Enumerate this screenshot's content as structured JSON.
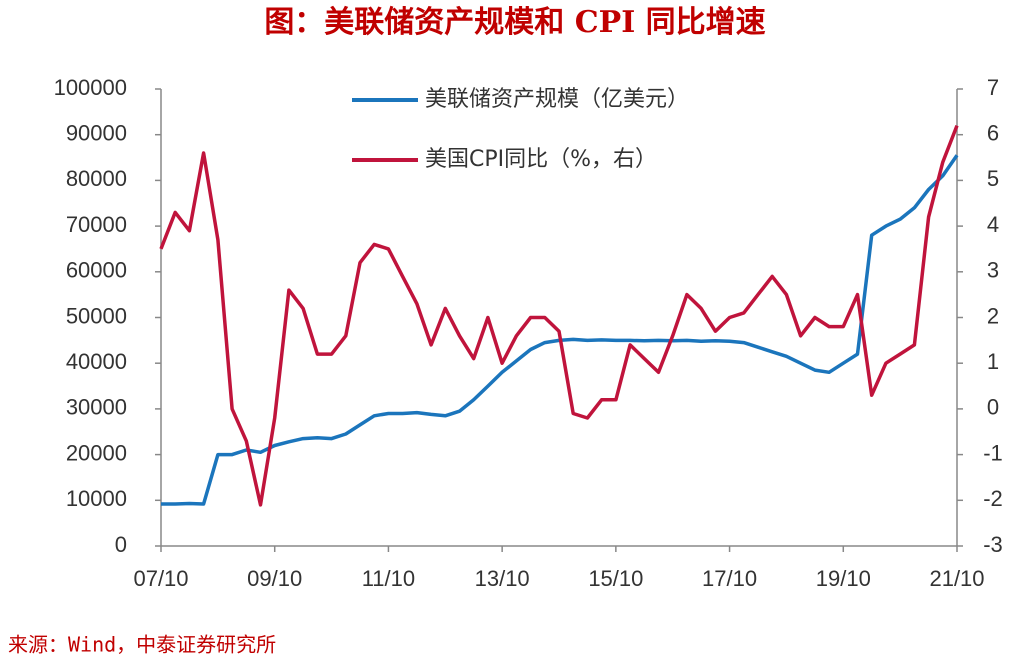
{
  "chart_data": {
    "type": "line",
    "title": "图：美联储资产规模和 CPI 同比增速",
    "source": "来源：Wind，中泰证券研究所",
    "categories": [
      "07/10",
      null,
      null,
      null,
      null,
      null,
      null,
      null,
      "09/10",
      null,
      null,
      null,
      null,
      null,
      null,
      null,
      "11/10",
      null,
      null,
      null,
      null,
      null,
      null,
      null,
      "13/10",
      null,
      null,
      null,
      null,
      null,
      null,
      null,
      "15/10",
      null,
      null,
      null,
      null,
      null,
      null,
      null,
      "17/10",
      null,
      null,
      null,
      null,
      null,
      null,
      null,
      "19/10",
      null,
      null,
      null,
      null,
      null,
      null,
      null,
      "21/10"
    ],
    "series": [
      {
        "name": "美联储资产规模（亿美元）",
        "color": "#1b75bc",
        "axis": "y",
        "values": [
          9200,
          9200,
          9300,
          9200,
          20000,
          20000,
          21000,
          20500,
          22000,
          22800,
          23500,
          23700,
          23500,
          24500,
          26500,
          28500,
          29000,
          29000,
          29200,
          28800,
          28500,
          29500,
          32000,
          35000,
          38000,
          40500,
          43000,
          44500,
          45000,
          45200,
          45000,
          45100,
          45000,
          45000,
          44900,
          45000,
          44900,
          45000,
          44800,
          44900,
          44800,
          44500,
          43500,
          42500,
          41500,
          40000,
          38500,
          38000,
          40000,
          42000,
          68000,
          70000,
          71500,
          74000,
          78000,
          81000,
          85500
        ]
      },
      {
        "name": "美国CPI同比（%，右）",
        "color": "#c0143c",
        "axis": "y2",
        "values": [
          3.5,
          4.3,
          3.9,
          5.6,
          3.7,
          0.0,
          -0.7,
          -2.1,
          -0.2,
          2.6,
          2.2,
          1.2,
          1.2,
          1.6,
          3.2,
          3.6,
          3.5,
          2.9,
          2.3,
          1.4,
          2.2,
          1.6,
          1.1,
          2.0,
          1.0,
          1.6,
          2.0,
          2.0,
          1.7,
          -0.1,
          -0.2,
          0.2,
          0.2,
          1.4,
          1.1,
          0.8,
          1.6,
          2.5,
          2.2,
          1.7,
          2.0,
          2.1,
          2.5,
          2.9,
          2.5,
          1.6,
          2.0,
          1.8,
          1.8,
          2.5,
          0.3,
          1.0,
          1.2,
          1.4,
          4.2,
          5.4,
          6.2
        ]
      }
    ],
    "ylim": [
      0,
      100000
    ],
    "yticks": [
      0,
      10000,
      20000,
      30000,
      40000,
      50000,
      60000,
      70000,
      80000,
      90000,
      100000
    ],
    "y2lim": [
      -3,
      7
    ],
    "y2ticks": [
      -3,
      -2,
      -1,
      0,
      1,
      2,
      3,
      4,
      5,
      6,
      7
    ],
    "legend": "top"
  }
}
